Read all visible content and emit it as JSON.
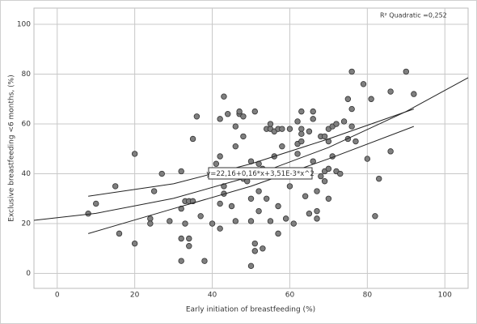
{
  "chart_data": {
    "type": "scatter",
    "xlabel": "Early initiation of breastfeeding (%)",
    "ylabel": "Exclusive breastfeeding <6 months, (%)",
    "annotations": [
      "R² Quadratic =0,252",
      "y=22,16+0,16*x+3,51E-3*x^2"
    ],
    "xlim": [
      -6,
      106
    ],
    "ylim": [
      -6,
      106.5
    ],
    "xticks": [
      0,
      20,
      40,
      60,
      80,
      100
    ],
    "yticks": [
      0,
      20,
      40,
      60,
      80,
      100
    ],
    "grid": true,
    "color": "#7f7f7f",
    "x": [
      8,
      10,
      15,
      16,
      20,
      20,
      24,
      24,
      25,
      27,
      29,
      32,
      32,
      32,
      32,
      33,
      33,
      34,
      34,
      34,
      35,
      35,
      36,
      37,
      38,
      40,
      40,
      41,
      42,
      42,
      42,
      42,
      43,
      43,
      43,
      44,
      45,
      46,
      46,
      46,
      47,
      47,
      48,
      48,
      48,
      49,
      50,
      50,
      50,
      50,
      50,
      51,
      51,
      51,
      52,
      52,
      52,
      53,
      53,
      54,
      54,
      55,
      55,
      55,
      56,
      56,
      57,
      57,
      57,
      58,
      58,
      59,
      59,
      60,
      60,
      61,
      61,
      62,
      62,
      62,
      63,
      63,
      63,
      63,
      64,
      64,
      65,
      65,
      66,
      66,
      66,
      67,
      67,
      67,
      68,
      68,
      69,
      69,
      69,
      70,
      70,
      70,
      70,
      71,
      71,
      72,
      72,
      73,
      74,
      75,
      75,
      76,
      76,
      76,
      77,
      79,
      80,
      81,
      82,
      83,
      86,
      86,
      90,
      92
    ],
    "y": [
      24,
      28,
      35,
      16,
      48,
      12,
      22,
      20,
      33,
      40,
      21,
      41,
      26,
      14,
      5,
      20,
      29,
      29,
      14,
      11,
      29,
      54,
      63,
      23,
      5,
      20,
      40,
      44,
      62,
      28,
      47,
      18,
      71,
      35,
      32,
      64,
      27,
      21,
      51,
      59,
      64,
      65,
      63,
      55,
      38,
      37,
      30,
      45,
      40,
      21,
      3,
      65,
      12,
      9,
      44,
      33,
      25,
      10,
      42,
      30,
      58,
      21,
      58,
      60,
      57,
      47,
      58,
      27,
      16,
      51,
      58,
      22,
      41,
      58,
      35,
      40,
      20,
      61,
      52,
      48,
      58,
      56,
      65,
      53,
      31,
      40,
      24,
      57,
      62,
      65,
      45,
      33,
      22,
      25,
      39,
      55,
      55,
      41,
      37,
      53,
      58,
      30,
      42,
      47,
      59,
      60,
      41,
      40,
      61,
      54,
      70,
      81,
      66,
      59,
      53,
      76,
      46,
      70,
      23,
      38,
      49,
      73,
      81,
      72
    ],
    "fit": {
      "x": [
        -6,
        10,
        30,
        50,
        70,
        90,
        106
      ],
      "y": [
        21.33,
        24.11,
        30.12,
        38.94,
        50.56,
        64.99,
        78.56
      ]
    },
    "ci_upper": {
      "x": [
        8,
        30,
        50,
        70,
        92
      ],
      "y": [
        31,
        36,
        44,
        54,
        66
      ]
    },
    "ci_lower": {
      "x": [
        8,
        30,
        50,
        70,
        92
      ],
      "y": [
        16,
        26,
        35,
        46,
        59
      ]
    }
  }
}
